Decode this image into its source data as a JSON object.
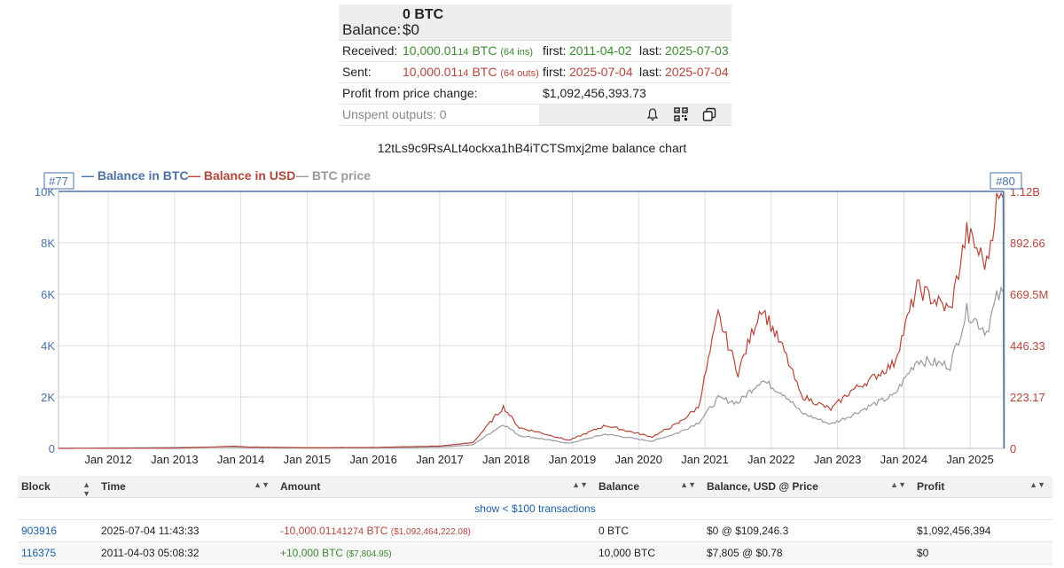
{
  "summary": {
    "btc_balance": "0 BTC",
    "balance_label": "Balance:",
    "usd_balance": "$0",
    "received": {
      "label": "Received:",
      "amount_main": "10,000.01",
      "amount_tail": "14",
      "unit": "BTC",
      "count": "(64 ins)",
      "first_label": "first:",
      "first_date": "2011-04-02",
      "last_label": "last:",
      "last_date": "2025-07-03"
    },
    "sent": {
      "label": "Sent:",
      "amount_main": "10,000.01",
      "amount_tail": "14",
      "unit": "BTC",
      "count": "(64 outs)",
      "first_label": "first:",
      "first_date": "2025-07-04",
      "last_label": "last:",
      "last_date": "2025-07-04"
    },
    "profit_label": "Profit from price change:",
    "profit_value": "$1,092,456,393.73",
    "unspent_label": "Unspent outputs: 0",
    "icons": [
      "bell-icon",
      "qr-code-icon",
      "copy-icon"
    ]
  },
  "chart_title": "12tLs9c9RsALt4ockxa1hB4iTCTSmxj2me balance chart",
  "chart_data": {
    "type": "line",
    "legend": {
      "placement": "top-left",
      "entries": [
        "Balance in BTC",
        "Balance in USD",
        "BTC price"
      ]
    },
    "markers": {
      "left": "#77",
      "right": "#80"
    },
    "x_ticks": [
      "Jan 2012",
      "Jan 2013",
      "Jan 2014",
      "Jan 2015",
      "Jan 2016",
      "Jan 2017",
      "Jan 2018",
      "Jan 2019",
      "Jan 2020",
      "Jan 2021",
      "Jan 2022",
      "Jan 2023",
      "Jan 2024",
      "Jan 2025"
    ],
    "y_left_ticks": [
      "0",
      "2K",
      "4K",
      "6K",
      "8K",
      "10K"
    ],
    "y_right_ticks": [
      "0",
      "223.17",
      "446.33",
      "669.5M",
      "892.66",
      "1.12B"
    ],
    "y_left_range": [
      0,
      10000
    ],
    "y_right_range": [
      0,
      1120000000
    ],
    "x_range": [
      2011.25,
      2025.52
    ],
    "grid": true,
    "colors": {
      "btc": "#4a72a8",
      "usd": "#b5453a",
      "price": "#999999"
    },
    "series": [
      {
        "name": "Balance in BTC",
        "points": [
          [
            2011.25,
            10000
          ],
          [
            2025.5,
            10000
          ],
          [
            2025.51,
            0
          ]
        ]
      },
      {
        "name": "Balance in USD",
        "points": [
          [
            2011.25,
            0
          ],
          [
            2013.0,
            1000000
          ],
          [
            2013.9,
            9000000
          ],
          [
            2014.1,
            6000000
          ],
          [
            2015.0,
            3000000
          ],
          [
            2016.0,
            4000000
          ],
          [
            2017.0,
            10000000
          ],
          [
            2017.5,
            25000000
          ],
          [
            2017.96,
            180000000
          ],
          [
            2018.2,
            90000000
          ],
          [
            2018.5,
            70000000
          ],
          [
            2018.95,
            35000000
          ],
          [
            2019.5,
            100000000
          ],
          [
            2020.2,
            50000000
          ],
          [
            2020.6,
            110000000
          ],
          [
            2020.9,
            180000000
          ],
          [
            2021.2,
            580000000
          ],
          [
            2021.5,
            330000000
          ],
          [
            2021.85,
            620000000
          ],
          [
            2022.2,
            420000000
          ],
          [
            2022.45,
            230000000
          ],
          [
            2022.9,
            170000000
          ],
          [
            2023.2,
            250000000
          ],
          [
            2023.5,
            300000000
          ],
          [
            2023.85,
            370000000
          ],
          [
            2024.2,
            700000000
          ],
          [
            2024.7,
            600000000
          ],
          [
            2024.95,
            940000000
          ],
          [
            2025.25,
            800000000
          ],
          [
            2025.4,
            1070000000
          ],
          [
            2025.5,
            1090000000
          ],
          [
            2025.51,
            0
          ]
        ]
      },
      {
        "name": "BTC price",
        "points": [
          [
            2011.25,
            0
          ],
          [
            2013.9,
            1000
          ],
          [
            2014.1,
            700
          ],
          [
            2015.0,
            300
          ],
          [
            2016.0,
            400
          ],
          [
            2017.0,
            1000
          ],
          [
            2017.5,
            2500
          ],
          [
            2017.96,
            17000
          ],
          [
            2018.2,
            9000
          ],
          [
            2018.5,
            7000
          ],
          [
            2018.95,
            3500
          ],
          [
            2019.5,
            10000
          ],
          [
            2020.2,
            5000
          ],
          [
            2020.6,
            11000
          ],
          [
            2020.9,
            18000
          ],
          [
            2021.2,
            35000
          ],
          [
            2021.5,
            32000
          ],
          [
            2021.85,
            48000
          ],
          [
            2022.2,
            38000
          ],
          [
            2022.45,
            25000
          ],
          [
            2022.9,
            17000
          ],
          [
            2023.2,
            23000
          ],
          [
            2023.5,
            30000
          ],
          [
            2023.85,
            37000
          ],
          [
            2024.2,
            62000
          ],
          [
            2024.7,
            58000
          ],
          [
            2024.95,
            96000
          ],
          [
            2025.25,
            82000
          ],
          [
            2025.4,
            105000
          ],
          [
            2025.5,
            109000
          ]
        ]
      }
    ]
  },
  "table": {
    "headers": [
      "Block",
      "Time",
      "Amount",
      "Balance",
      "Balance, USD @ Price",
      "Profit"
    ],
    "show_small": "show < $100 transactions",
    "rows": [
      {
        "block": "903916",
        "time": "2025-07-04 11:43:33",
        "amount_main": "-10,000.01",
        "amount_tail": "141274",
        "unit": "BTC",
        "amount_usd": "($1,092,464,222.08)",
        "balance": "0 BTC",
        "balance_usd": "$0 @ $109,246.3",
        "profit": "$1,092,456,394"
      },
      {
        "block": "116375",
        "time": "2011-04-03 05:08:32",
        "amount_main": "+10,000",
        "amount_tail": "",
        "unit": "BTC",
        "amount_usd": "($7,804.95)",
        "balance": "10,000 BTC",
        "balance_usd": "$7,805 @ $0.78",
        "profit": "$0"
      }
    ]
  }
}
